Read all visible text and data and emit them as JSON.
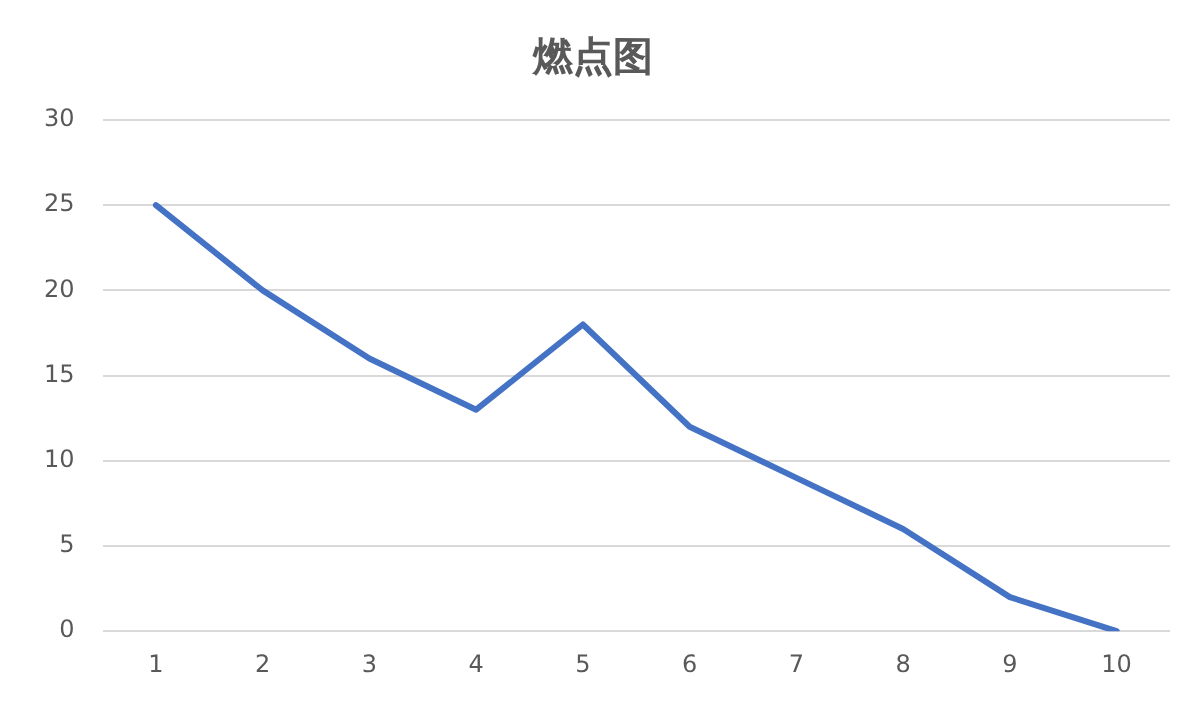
{
  "chart_data": {
    "type": "line",
    "title": "燃点图",
    "categories": [
      "1",
      "2",
      "3",
      "4",
      "5",
      "6",
      "7",
      "8",
      "9",
      "10"
    ],
    "series": [
      {
        "color": "#4472c4",
        "values": [
          25,
          20,
          16,
          13,
          18,
          12,
          9,
          6,
          2,
          0
        ]
      }
    ],
    "ylim": [
      0,
      30
    ],
    "yticks": [
      0,
      5,
      10,
      15,
      20,
      25,
      30
    ],
    "grid": "y",
    "legend": false,
    "marker": "none",
    "line_style": "solid"
  }
}
